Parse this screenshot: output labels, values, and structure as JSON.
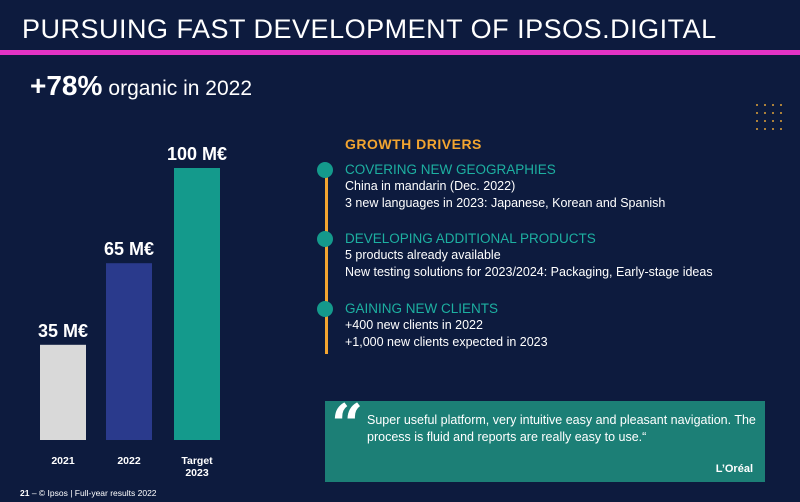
{
  "header": {
    "title": "PURSUING FAST DEVELOPMENT OF IPSOS.DIGITAL"
  },
  "headline": {
    "big": "+78%",
    "rest": "organic in 2022"
  },
  "colors": {
    "accent": "#e233c4",
    "orange": "#f3a530",
    "teal": "#149a8c",
    "navy": "#0d1b3e"
  },
  "chart_data": {
    "type": "bar",
    "categories": [
      "2021",
      "2022",
      "Target 2023"
    ],
    "values": [
      35,
      65,
      100
    ],
    "value_labels": [
      "35 M€",
      "65 M€",
      "100 M€"
    ],
    "bar_colors": [
      "#d9d9d9",
      "#2a3a8c",
      "#149a8c"
    ],
    "ylim": [
      0,
      100
    ]
  },
  "drivers": {
    "title": "GROWTH DRIVERS",
    "items": [
      {
        "title": "COVERING NEW GEOGRAPHIES",
        "lines": [
          "China in mandarin (Dec. 2022)",
          "3 new languages in 2023: Japanese, Korean and Spanish"
        ]
      },
      {
        "title": "DEVELOPING ADDITIONAL PRODUCTS",
        "lines": [
          "5 products already available",
          "New testing solutions for 2023/2024: Packaging, Early-stage ideas"
        ]
      },
      {
        "title": "GAINING NEW CLIENTS",
        "lines": [
          "+400 new clients in 2022",
          "+1,000 new clients expected in 2023"
        ]
      }
    ]
  },
  "quote": {
    "mark": "“",
    "text": "Super useful platform, very intuitive easy and pleasant navigation. The process is fluid and reports are really easy to use.“",
    "author": "L’Oréal"
  },
  "footer": {
    "page": "21",
    "text": "– © Ipsos | Full-year results 2022"
  }
}
